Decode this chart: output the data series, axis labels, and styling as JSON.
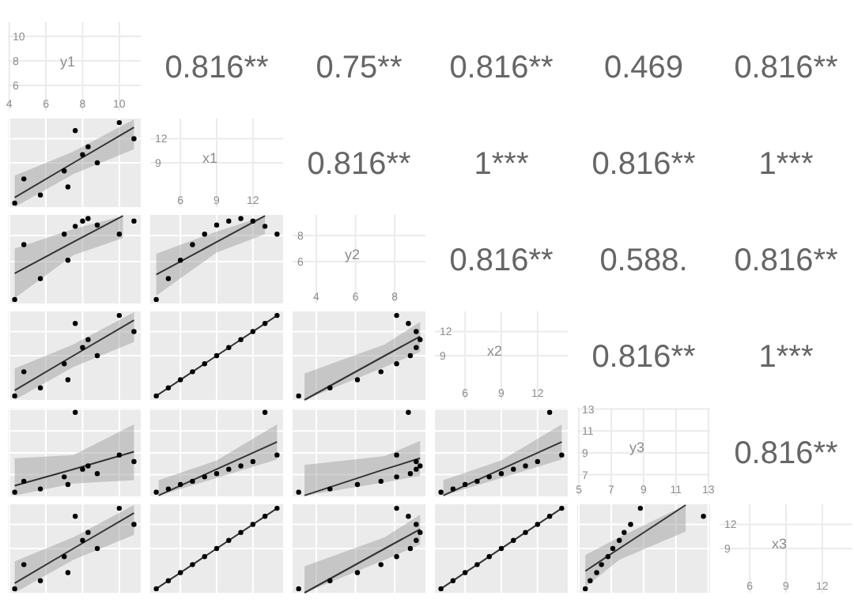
{
  "chart_data": [
    {
      "type": "scatter",
      "title": "y1",
      "xlim": [
        3.93,
        11.17
      ],
      "ylim": [
        3.93,
        11.17
      ],
      "xticks": [
        4,
        6,
        8,
        10
      ],
      "yticks": [
        6,
        8,
        10
      ],
      "grid": true
    },
    {
      "type": "other",
      "annotations": [
        "0.816**"
      ]
    },
    {
      "type": "other",
      "annotations": [
        "0.75**"
      ]
    },
    {
      "type": "other",
      "annotations": [
        "0.816**"
      ]
    },
    {
      "type": "other",
      "annotations": [
        "0.469"
      ]
    },
    {
      "type": "other",
      "annotations": [
        "0.816**"
      ]
    },
    {
      "type": "scatter",
      "xlim": [
        3.93,
        11.17
      ],
      "ylim": [
        3.5,
        14.5
      ],
      "xticks": [
        4,
        6,
        8,
        10
      ],
      "yticks": [
        9,
        12
      ],
      "tick_labels": false,
      "grid": true,
      "series": [
        {
          "type": "scatter",
          "marker": "circle",
          "color": "#000000",
          "x": [
            8.0,
            7.0,
            7.6,
            8.8,
            8.3,
            10.0,
            7.2,
            4.3,
            10.8,
            4.8,
            5.7
          ],
          "values": [
            10,
            8,
            13,
            9,
            11,
            14,
            6,
            4,
            12,
            7,
            5
          ]
        },
        {
          "type": "line",
          "marker": "none",
          "color": "#333333",
          "x": [
            4.3,
            7.5,
            10.8
          ],
          "values": [
            4.7,
            9,
            13.4
          ],
          "lower": [
            3.5,
            7.6,
            10.7
          ],
          "upper": [
            7.4,
            10.4,
            14.4
          ]
        }
      ]
    },
    {
      "type": "scatter",
      "title": "x1",
      "xlim": [
        3.5,
        14.5
      ],
      "ylim": [
        3.5,
        14.5
      ],
      "xticks": [
        6,
        9,
        12
      ],
      "yticks": [
        9,
        12
      ],
      "grid": true
    },
    {
      "type": "other",
      "annotations": [
        "0.816**"
      ]
    },
    {
      "type": "other",
      "annotations": [
        "1***"
      ]
    },
    {
      "type": "other",
      "annotations": [
        "0.816**"
      ]
    },
    {
      "type": "other",
      "annotations": [
        "1***"
      ]
    },
    {
      "type": "scatter",
      "xlim": [
        3.93,
        11.17
      ],
      "ylim": [
        2.79,
        9.57
      ],
      "xticks": [
        4,
        6,
        8,
        10
      ],
      "yticks": [
        6,
        8
      ],
      "tick_labels": false,
      "grid": true,
      "series": [
        {
          "type": "scatter",
          "marker": "circle",
          "color": "#000000",
          "x": [
            8.0,
            7.0,
            7.6,
            8.8,
            8.3,
            10.0,
            7.2,
            4.3,
            10.8,
            4.8,
            5.7
          ],
          "values": [
            9.1,
            8.1,
            8.7,
            8.8,
            9.3,
            8.1,
            6.1,
            3.1,
            9.1,
            7.3,
            4.7
          ]
        },
        {
          "type": "line",
          "marker": "none",
          "color": "#333333",
          "x": [
            4.3,
            7.5,
            10.2
          ],
          "values": [
            5.1,
            7.5,
            9.5
          ],
          "lower": [
            3.2,
            6.5,
            7.8
          ],
          "upper": [
            7.0,
            8.5,
            9.5
          ]
        }
      ]
    },
    {
      "type": "scatter",
      "xlim": [
        3.5,
        14.5
      ],
      "ylim": [
        2.79,
        9.57
      ],
      "xticks": [
        6,
        9,
        12
      ],
      "yticks": [
        6,
        8
      ],
      "tick_labels": false,
      "grid": true,
      "series": [
        {
          "type": "scatter",
          "marker": "circle",
          "color": "#000000",
          "x": [
            10,
            8,
            13,
            9,
            11,
            14,
            6,
            4,
            12,
            7,
            5
          ],
          "values": [
            9.1,
            8.1,
            8.7,
            8.8,
            9.3,
            8.1,
            6.1,
            3.1,
            9.1,
            7.3,
            4.7
          ]
        },
        {
          "type": "line",
          "marker": "none",
          "color": "#333333",
          "x": [
            4,
            9,
            13
          ],
          "values": [
            5,
            7.5,
            9.5
          ],
          "lower": [
            3.4,
            6.7,
            8.1
          ],
          "upper": [
            6.6,
            8.3,
            9.5
          ]
        }
      ]
    },
    {
      "type": "scatter",
      "title": "y2",
      "xlim": [
        2.79,
        9.57
      ],
      "ylim": [
        2.79,
        9.57
      ],
      "xticks": [
        4,
        6,
        8
      ],
      "yticks": [
        6,
        8
      ],
      "grid": true
    },
    {
      "type": "other",
      "annotations": [
        "0.816**"
      ]
    },
    {
      "type": "other",
      "annotations": [
        "0.588."
      ]
    },
    {
      "type": "other",
      "annotations": [
        "0.816**"
      ]
    },
    {
      "type": "scatter",
      "xlim": [
        3.93,
        11.17
      ],
      "ylim": [
        3.5,
        14.5
      ],
      "xticks": [
        4,
        6,
        8,
        10
      ],
      "yticks": [
        9,
        12
      ],
      "tick_labels": false,
      "grid": true,
      "series": [
        {
          "type": "scatter",
          "marker": "circle",
          "color": "#000000",
          "x": [
            8.0,
            7.0,
            7.6,
            8.8,
            8.3,
            10.0,
            7.2,
            4.3,
            10.8,
            4.8,
            5.7
          ],
          "values": [
            10,
            8,
            13,
            9,
            11,
            14,
            6,
            4,
            12,
            7,
            5
          ]
        },
        {
          "type": "line",
          "marker": "none",
          "color": "#333333",
          "x": [
            4.3,
            7.5,
            10.8
          ],
          "values": [
            4.7,
            9,
            13.4
          ],
          "lower": [
            3.5,
            7.6,
            10.7
          ],
          "upper": [
            7.4,
            10.4,
            14.4
          ]
        }
      ]
    },
    {
      "type": "scatter",
      "xlim": [
        3.5,
        14.5
      ],
      "ylim": [
        3.5,
        14.5
      ],
      "xticks": [
        6,
        9,
        12
      ],
      "yticks": [
        9,
        12
      ],
      "tick_labels": false,
      "grid": true,
      "series": [
        {
          "type": "scatter",
          "marker": "circle",
          "color": "#000000",
          "x": [
            10,
            8,
            13,
            9,
            11,
            14,
            6,
            4,
            12,
            7,
            5
          ],
          "values": [
            10,
            8,
            13,
            9,
            11,
            14,
            6,
            4,
            12,
            7,
            5
          ]
        },
        {
          "type": "line",
          "marker": "none",
          "color": "#333333",
          "x": [
            4,
            14
          ],
          "values": [
            4,
            14
          ]
        }
      ]
    },
    {
      "type": "scatter",
      "xlim": [
        2.79,
        9.57
      ],
      "ylim": [
        3.5,
        14.5
      ],
      "xticks": [
        4,
        6,
        8
      ],
      "yticks": [
        9,
        12
      ],
      "tick_labels": false,
      "grid": true,
      "series": [
        {
          "type": "scatter",
          "marker": "circle",
          "color": "#000000",
          "x": [
            9.1,
            8.1,
            8.7,
            8.8,
            9.3,
            8.1,
            6.1,
            3.1,
            9.1,
            7.3,
            4.7
          ],
          "values": [
            10,
            8,
            13,
            9,
            11,
            14,
            6,
            4,
            12,
            7,
            5
          ]
        },
        {
          "type": "line",
          "marker": "none",
          "color": "#333333",
          "x": [
            3.4,
            7.5,
            9.3
          ],
          "values": [
            3.5,
            9,
            11.4
          ],
          "lower": [
            3.5,
            7.6,
            9.5
          ],
          "upper": [
            6.8,
            10.4,
            13.2
          ]
        }
      ]
    },
    {
      "type": "scatter",
      "title": "x2",
      "xlim": [
        3.5,
        14.5
      ],
      "ylim": [
        3.5,
        14.5
      ],
      "xticks": [
        6,
        9,
        12
      ],
      "yticks": [
        9,
        12
      ],
      "grid": true
    },
    {
      "type": "other",
      "annotations": [
        "0.816**"
      ]
    },
    {
      "type": "other",
      "annotations": [
        "1***"
      ]
    },
    {
      "type": "scatter",
      "xlim": [
        3.93,
        11.17
      ],
      "ylim": [
        5.02,
        13.11
      ],
      "xticks": [
        4,
        6,
        8,
        10
      ],
      "yticks": [
        7,
        9,
        11,
        13
      ],
      "tick_labels": false,
      "grid": true,
      "series": [
        {
          "type": "scatter",
          "marker": "circle",
          "color": "#000000",
          "x": [
            8.0,
            7.0,
            7.6,
            8.8,
            8.3,
            10.0,
            7.2,
            4.3,
            10.8,
            4.8,
            5.7
          ],
          "values": [
            7.5,
            6.8,
            12.7,
            7.1,
            7.8,
            8.8,
            6.1,
            5.4,
            8.2,
            6.4,
            5.7
          ]
        },
        {
          "type": "line",
          "marker": "none",
          "color": "#333333",
          "x": [
            4.3,
            7.5,
            10.8
          ],
          "values": [
            6.0,
            7.5,
            9.1
          ],
          "lower": [
            5.1,
            6.2,
            6.5
          ],
          "upper": [
            8.5,
            8.8,
            11.6
          ]
        }
      ]
    },
    {
      "type": "scatter",
      "xlim": [
        3.5,
        14.5
      ],
      "ylim": [
        5.02,
        13.11
      ],
      "xticks": [
        6,
        9,
        12
      ],
      "yticks": [
        7,
        9,
        11,
        13
      ],
      "tick_labels": false,
      "grid": true,
      "series": [
        {
          "type": "scatter",
          "marker": "circle",
          "color": "#000000",
          "x": [
            10,
            8,
            13,
            9,
            11,
            14,
            6,
            4,
            12,
            7,
            5
          ],
          "values": [
            7.5,
            6.8,
            12.7,
            7.1,
            7.8,
            8.8,
            6.1,
            5.4,
            8.2,
            6.4,
            5.7
          ]
        },
        {
          "type": "line",
          "marker": "none",
          "color": "#333333",
          "x": [
            4.2,
            9,
            14
          ],
          "values": [
            5.1,
            7.5,
            10
          ],
          "lower": [
            5.1,
            6.7,
            8.4
          ],
          "upper": [
            6.5,
            8.3,
            11.6
          ]
        }
      ]
    },
    {
      "type": "scatter",
      "xlim": [
        2.79,
        9.57
      ],
      "ylim": [
        5.02,
        13.11
      ],
      "xticks": [
        4,
        6,
        8
      ],
      "yticks": [
        7,
        9,
        11,
        13
      ],
      "tick_labels": false,
      "grid": true,
      "series": [
        {
          "type": "scatter",
          "marker": "circle",
          "color": "#000000",
          "x": [
            9.1,
            8.1,
            8.7,
            8.8,
            9.3,
            8.1,
            6.1,
            3.1,
            9.1,
            7.3,
            4.7
          ],
          "values": [
            7.5,
            6.8,
            12.7,
            7.1,
            7.8,
            8.8,
            6.1,
            5.4,
            8.2,
            6.4,
            5.7
          ]
        },
        {
          "type": "line",
          "marker": "none",
          "color": "#333333",
          "x": [
            3.4,
            7.5,
            9.3
          ],
          "values": [
            5.1,
            7.5,
            8.5
          ],
          "lower": [
            5.1,
            6.3,
            6.9
          ],
          "upper": [
            7.9,
            8.7,
            10.1
          ]
        }
      ]
    },
    {
      "type": "scatter",
      "xlim": [
        3.5,
        14.5
      ],
      "ylim": [
        5.02,
        13.11
      ],
      "xticks": [
        6,
        9,
        12
      ],
      "yticks": [
        7,
        9,
        11,
        13
      ],
      "tick_labels": false,
      "grid": true,
      "series": [
        {
          "type": "scatter",
          "marker": "circle",
          "color": "#000000",
          "x": [
            10,
            8,
            13,
            9,
            11,
            14,
            6,
            4,
            12,
            7,
            5
          ],
          "values": [
            7.5,
            6.8,
            12.7,
            7.1,
            7.8,
            8.8,
            6.1,
            5.4,
            8.2,
            6.4,
            5.7
          ]
        },
        {
          "type": "line",
          "marker": "none",
          "color": "#333333",
          "x": [
            4.2,
            9,
            14
          ],
          "values": [
            5.1,
            7.5,
            10
          ],
          "lower": [
            5.1,
            6.7,
            8.4
          ],
          "upper": [
            6.5,
            8.3,
            11.6
          ]
        }
      ]
    },
    {
      "type": "scatter",
      "title": "y3",
      "xlim": [
        4.9,
        13.11
      ],
      "ylim": [
        5.02,
        13.11
      ],
      "xticks": [
        5,
        7,
        9,
        11,
        13
      ],
      "yticks": [
        7,
        9,
        11,
        13
      ],
      "grid": true
    },
    {
      "type": "other",
      "annotations": [
        "0.816**"
      ]
    },
    {
      "type": "scatter",
      "xlim": [
        3.93,
        11.17
      ],
      "ylim": [
        3.5,
        14.5
      ],
      "xticks": [
        4,
        6,
        8,
        10
      ],
      "yticks": [
        9,
        12
      ],
      "tick_labels": false,
      "grid": true,
      "series": [
        {
          "type": "scatter",
          "marker": "circle",
          "color": "#000000",
          "x": [
            8.0,
            7.0,
            7.6,
            8.8,
            8.3,
            10.0,
            7.2,
            4.3,
            10.8,
            4.8,
            5.7
          ],
          "values": [
            10,
            8,
            13,
            9,
            11,
            14,
            6,
            4,
            12,
            7,
            5
          ]
        },
        {
          "type": "line",
          "marker": "none",
          "color": "#333333",
          "x": [
            4.3,
            7.5,
            10.8
          ],
          "values": [
            4.7,
            9,
            13.4
          ],
          "lower": [
            3.5,
            7.6,
            10.7
          ],
          "upper": [
            7.4,
            10.4,
            14.4
          ]
        }
      ]
    },
    {
      "type": "scatter",
      "xlim": [
        3.5,
        14.5
      ],
      "ylim": [
        3.5,
        14.5
      ],
      "xticks": [
        6,
        9,
        12
      ],
      "yticks": [
        9,
        12
      ],
      "tick_labels": false,
      "grid": true,
      "series": [
        {
          "type": "scatter",
          "marker": "circle",
          "color": "#000000",
          "x": [
            10,
            8,
            13,
            9,
            11,
            14,
            6,
            4,
            12,
            7,
            5
          ],
          "values": [
            10,
            8,
            13,
            9,
            11,
            14,
            6,
            4,
            12,
            7,
            5
          ]
        },
        {
          "type": "line",
          "marker": "none",
          "color": "#333333",
          "x": [
            4,
            14
          ],
          "values": [
            4,
            14
          ]
        }
      ]
    },
    {
      "type": "scatter",
      "xlim": [
        2.79,
        9.57
      ],
      "ylim": [
        3.5,
        14.5
      ],
      "xticks": [
        4,
        6,
        8
      ],
      "yticks": [
        9,
        12
      ],
      "tick_labels": false,
      "grid": true,
      "series": [
        {
          "type": "scatter",
          "marker": "circle",
          "color": "#000000",
          "x": [
            9.1,
            8.1,
            8.7,
            8.8,
            9.3,
            8.1,
            6.1,
            3.1,
            9.1,
            7.3,
            4.7
          ],
          "values": [
            10,
            8,
            13,
            9,
            11,
            14,
            6,
            4,
            12,
            7,
            5
          ]
        },
        {
          "type": "line",
          "marker": "none",
          "color": "#333333",
          "x": [
            3.4,
            7.5,
            9.3
          ],
          "values": [
            3.5,
            9,
            11.4
          ],
          "lower": [
            3.5,
            7.6,
            9.5
          ],
          "upper": [
            6.8,
            10.4,
            13.2
          ]
        }
      ]
    },
    {
      "type": "scatter",
      "xlim": [
        3.5,
        14.5
      ],
      "ylim": [
        3.5,
        14.5
      ],
      "xticks": [
        6,
        9,
        12
      ],
      "yticks": [
        9,
        12
      ],
      "tick_labels": false,
      "grid": true,
      "series": [
        {
          "type": "scatter",
          "marker": "circle",
          "color": "#000000",
          "x": [
            10,
            8,
            13,
            9,
            11,
            14,
            6,
            4,
            12,
            7,
            5
          ],
          "values": [
            10,
            8,
            13,
            9,
            11,
            14,
            6,
            4,
            12,
            7,
            5
          ]
        },
        {
          "type": "line",
          "marker": "none",
          "color": "#333333",
          "x": [
            4,
            14
          ],
          "values": [
            4,
            14
          ]
        }
      ]
    },
    {
      "type": "scatter",
      "xlim": [
        4.9,
        13.11
      ],
      "ylim": [
        3.5,
        14.5
      ],
      "xticks": [
        5,
        7,
        9,
        11,
        13
      ],
      "yticks": [
        9,
        12
      ],
      "tick_labels": false,
      "grid": true,
      "series": [
        {
          "type": "scatter",
          "marker": "circle",
          "color": "#000000",
          "x": [
            7.5,
            6.8,
            12.7,
            7.1,
            7.8,
            8.8,
            6.1,
            5.4,
            8.2,
            6.4,
            5.7
          ],
          "values": [
            10,
            8,
            13,
            9,
            11,
            14,
            6,
            4,
            12,
            7,
            5
          ]
        },
        {
          "type": "line",
          "marker": "none",
          "color": "#333333",
          "x": [
            5.4,
            7.5,
            11.6
          ],
          "values": [
            6.2,
            9,
            14.4
          ],
          "lower": [
            4.2,
            7.6,
            11.1
          ],
          "upper": [
            8.2,
            10.4,
            14.4
          ]
        }
      ]
    },
    {
      "type": "scatter",
      "title": "x3",
      "xlim": [
        3.5,
        14.5
      ],
      "ylim": [
        3.5,
        14.5
      ],
      "xticks": [
        6,
        9,
        12
      ],
      "yticks": [
        9,
        12
      ],
      "grid": true
    }
  ]
}
